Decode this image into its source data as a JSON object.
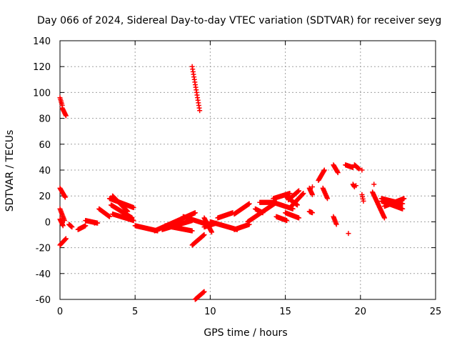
{
  "chart_data": {
    "type": "scatter",
    "title": "Day 066 of 2024, Sidereal Day-to-day VTEC variation (SDTVAR) for receiver seyg",
    "xlabel": "GPS time / hours",
    "ylabel": "SDTVAR / TECUs",
    "xlim": [
      0,
      25
    ],
    "ylim": [
      -60,
      140
    ],
    "xticks": [
      "0",
      "5",
      "10",
      "15",
      "20",
      "25"
    ],
    "yticks": [
      "-60",
      "-40",
      "-20",
      "0",
      "20",
      "40",
      "60",
      "80",
      "100",
      "120",
      "140"
    ],
    "grid": true,
    "marker": "+",
    "color": "#ff0000",
    "tracks": [
      {
        "x0": 0.0,
        "y0": 96,
        "x1": 0.15,
        "y1": 90
      },
      {
        "x0": 0.15,
        "y0": 88,
        "x1": 0.4,
        "y1": 82
      },
      {
        "x0": 0.0,
        "y0": 26,
        "x1": 0.35,
        "y1": 19
      },
      {
        "x0": 0.0,
        "y0": 10,
        "x1": 0.3,
        "y1": 1
      },
      {
        "x0": 0.0,
        "y0": 2,
        "x1": 0.2,
        "y1": -3
      },
      {
        "x0": 0.0,
        "y0": -18,
        "x1": 0.4,
        "y1": -13
      },
      {
        "x0": 0.6,
        "y0": -2,
        "x1": 0.8,
        "y1": -4
      },
      {
        "x0": 1.2,
        "y0": -6,
        "x1": 1.7,
        "y1": -3
      },
      {
        "x0": 1.7,
        "y0": 1,
        "x1": 2.5,
        "y1": -1
      },
      {
        "x0": 2.6,
        "y0": 10,
        "x1": 3.3,
        "y1": 4
      },
      {
        "x0": 3.3,
        "y0": 18,
        "x1": 4.9,
        "y1": 11
      },
      {
        "x0": 3.5,
        "y0": 20,
        "x1": 4.5,
        "y1": 8
      },
      {
        "x0": 3.4,
        "y0": 13,
        "x1": 4.8,
        "y1": 3
      },
      {
        "x0": 3.5,
        "y0": 6,
        "x1": 4.9,
        "y1": 1
      },
      {
        "x0": 5.0,
        "y0": -3,
        "x1": 6.5,
        "y1": -7
      },
      {
        "x0": 6.3,
        "y0": -7,
        "x1": 9.0,
        "y1": 7
      },
      {
        "x0": 6.8,
        "y0": -6,
        "x1": 8.8,
        "y1": 1
      },
      {
        "x0": 7.0,
        "y0": -3,
        "x1": 8.8,
        "y1": -7
      },
      {
        "x0": 8.2,
        "y0": 4,
        "x1": 9.8,
        "y1": -2
      },
      {
        "x0": 8.8,
        "y0": 120,
        "x1": 9.3,
        "y1": 86
      },
      {
        "x0": 8.8,
        "y0": -18,
        "x1": 9.6,
        "y1": -10
      },
      {
        "x0": 9.0,
        "y0": -60,
        "x1": 9.6,
        "y1": -54
      },
      {
        "x0": 9.6,
        "y0": 3,
        "x1": 10.1,
        "y1": -8
      },
      {
        "x0": 9.6,
        "y0": -4,
        "x1": 10.4,
        "y1": -1
      },
      {
        "x0": 10.0,
        "y0": 0,
        "x1": 11.8,
        "y1": -6
      },
      {
        "x0": 10.5,
        "y0": 3,
        "x1": 11.5,
        "y1": 7
      },
      {
        "x0": 11.6,
        "y0": -6,
        "x1": 12.6,
        "y1": -2
      },
      {
        "x0": 11.6,
        "y0": 6,
        "x1": 12.6,
        "y1": 14
      },
      {
        "x0": 12.5,
        "y0": 0,
        "x1": 14.4,
        "y1": 15
      },
      {
        "x0": 13.0,
        "y0": 10,
        "x1": 13.5,
        "y1": 7
      },
      {
        "x0": 13.3,
        "y0": 15,
        "x1": 14.2,
        "y1": 15
      },
      {
        "x0": 14.2,
        "y0": 15,
        "x1": 15.5,
        "y1": 10
      },
      {
        "x0": 14.2,
        "y0": 18,
        "x1": 15.3,
        "y1": 22
      },
      {
        "x0": 14.4,
        "y0": 4,
        "x1": 15.1,
        "y1": 1
      },
      {
        "x0": 15.0,
        "y0": 7,
        "x1": 15.9,
        "y1": 3
      },
      {
        "x0": 15.0,
        "y0": 20,
        "x1": 15.8,
        "y1": 13
      },
      {
        "x0": 15.4,
        "y0": 12,
        "x1": 16.2,
        "y1": 22
      },
      {
        "x0": 15.2,
        "y0": 17,
        "x1": 15.9,
        "y1": 24
      },
      {
        "x0": 16.6,
        "y0": 26,
        "x1": 16.8,
        "y1": 21
      },
      {
        "x0": 16.6,
        "y0": 8,
        "x1": 16.8,
        "y1": 7
      },
      {
        "x0": 17.2,
        "y0": 32,
        "x1": 17.6,
        "y1": 40
      },
      {
        "x0": 17.5,
        "y0": 26,
        "x1": 17.8,
        "y1": 18
      },
      {
        "x0": 18.2,
        "y0": 44,
        "x1": 18.5,
        "y1": 38
      },
      {
        "x0": 18.2,
        "y0": 4,
        "x1": 18.4,
        "y1": -2
      },
      {
        "x0": 19.0,
        "y0": 44,
        "x1": 19.5,
        "y1": 42
      },
      {
        "x0": 19.6,
        "y0": 44,
        "x1": 19.9,
        "y1": 41
      },
      {
        "x0": 19.5,
        "y0": 29,
        "x1": 19.6,
        "y1": 27
      },
      {
        "x0": 20.1,
        "y0": 21,
        "x1": 20.2,
        "y1": 16
      },
      {
        "x0": 20.8,
        "y0": 23,
        "x1": 21.6,
        "y1": 3
      },
      {
        "x0": 21.4,
        "y0": 18,
        "x1": 22.8,
        "y1": 14
      },
      {
        "x0": 21.4,
        "y0": 16,
        "x1": 22.8,
        "y1": 10
      },
      {
        "x0": 21.6,
        "y0": 12,
        "x1": 22.9,
        "y1": 18
      }
    ],
    "points": [
      {
        "x": 19.2,
        "y": -9
      },
      {
        "x": 20.1,
        "y": 40
      },
      {
        "x": 19.7,
        "y": 28
      },
      {
        "x": 20.9,
        "y": 29
      },
      {
        "x": 16.8,
        "y": 27
      },
      {
        "x": 0.7,
        "y": -3
      },
      {
        "x": 2.3,
        "y": -1
      }
    ]
  }
}
